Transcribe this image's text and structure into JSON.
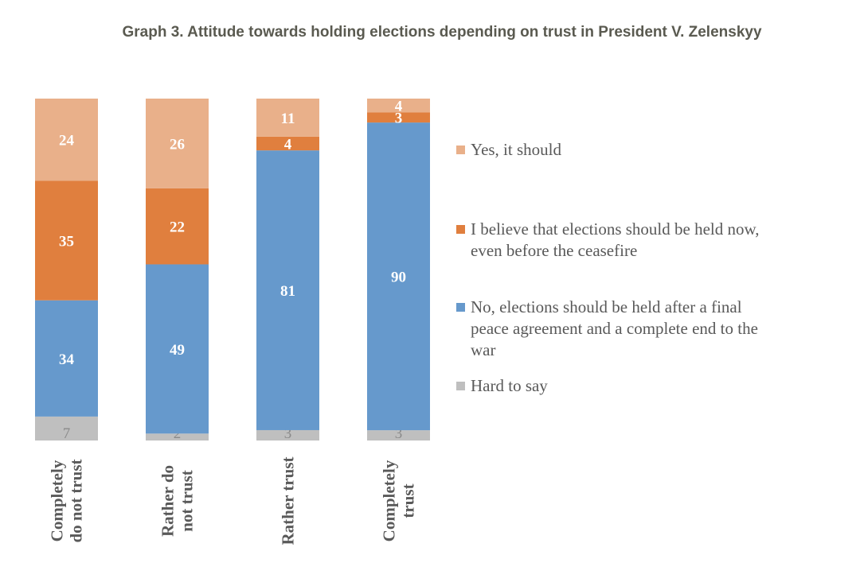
{
  "chart_data": {
    "type": "bar",
    "stacked": true,
    "orientation": "vertical",
    "title": "Graph 3. Attitude towards holding elections depending on trust in President V. Zelenskyy",
    "xlabel": "",
    "ylabel": "",
    "ylim": [
      0,
      100
    ],
    "grid": false,
    "legend_position": "right",
    "categories": [
      [
        "Completely",
        "do not trust"
      ],
      [
        "Rather do",
        "not trust"
      ],
      [
        "Rather trust"
      ],
      [
        "Completely",
        "trust"
      ]
    ],
    "series": [
      {
        "name": "Hard to say",
        "color": "#bfbfbf",
        "values": [
          7,
          2,
          3,
          3
        ]
      },
      {
        "name": "No, elections should be held after a final peace agreement and a complete end to the war",
        "color": "#6699cc",
        "values": [
          34,
          49,
          81,
          90
        ]
      },
      {
        "name": "I believe that elections should be held now, even before the ceasefire",
        "color": "#e07f3e",
        "values": [
          35,
          22,
          4,
          3
        ]
      },
      {
        "name": "Yes, it should",
        "color": "#e9b08a",
        "values": [
          24,
          26,
          11,
          4
        ]
      }
    ],
    "legend_order": [
      3,
      2,
      1,
      0
    ],
    "legend": [
      {
        "lines": [
          "Yes, it should"
        ],
        "color": "#e9b08a"
      },
      {
        "lines": [
          "I believe that elections should be held now,",
          "even before the ceasefire"
        ],
        "color": "#e07f3e"
      },
      {
        "lines": [
          "No, elections should be held after a final",
          "peace agreement and a complete end to the",
          "war"
        ],
        "color": "#6699cc"
      },
      {
        "lines": [
          "Hard to say"
        ],
        "color": "#bfbfbf"
      }
    ]
  }
}
